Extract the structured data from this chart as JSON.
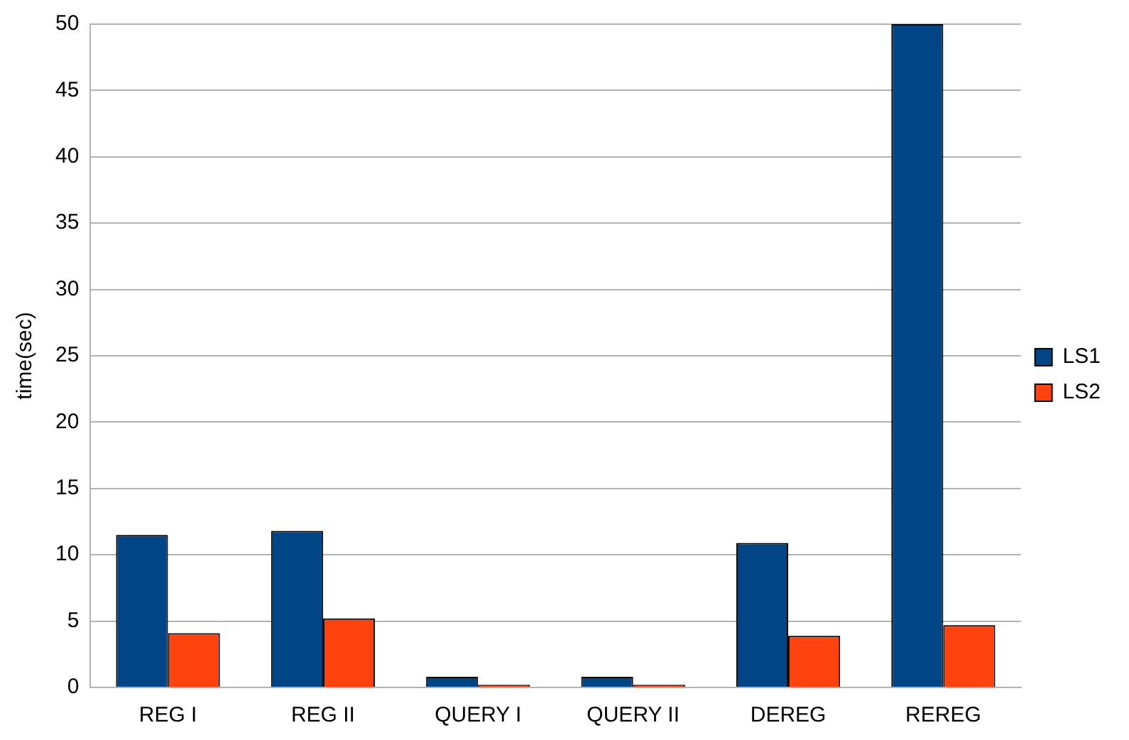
{
  "chart_data": {
    "type": "bar",
    "ylabel": "time(sec)",
    "categories": [
      "REG I",
      "REG II",
      "QUERY I",
      "QUERY II",
      "DEREG",
      "REREG"
    ],
    "series": [
      {
        "name": "LS1",
        "color": "#004586",
        "values": [
          11.5,
          11.8,
          0.8,
          0.8,
          10.9,
          50
        ]
      },
      {
        "name": "LS2",
        "color": "#ff420e",
        "values": [
          4.1,
          5.2,
          0.2,
          0.2,
          3.9,
          4.7
        ]
      }
    ],
    "ylim": [
      0,
      50
    ],
    "yticks": [
      0,
      5,
      10,
      15,
      20,
      25,
      30,
      35,
      40,
      45,
      50
    ],
    "grid": "y",
    "legend": "right"
  }
}
